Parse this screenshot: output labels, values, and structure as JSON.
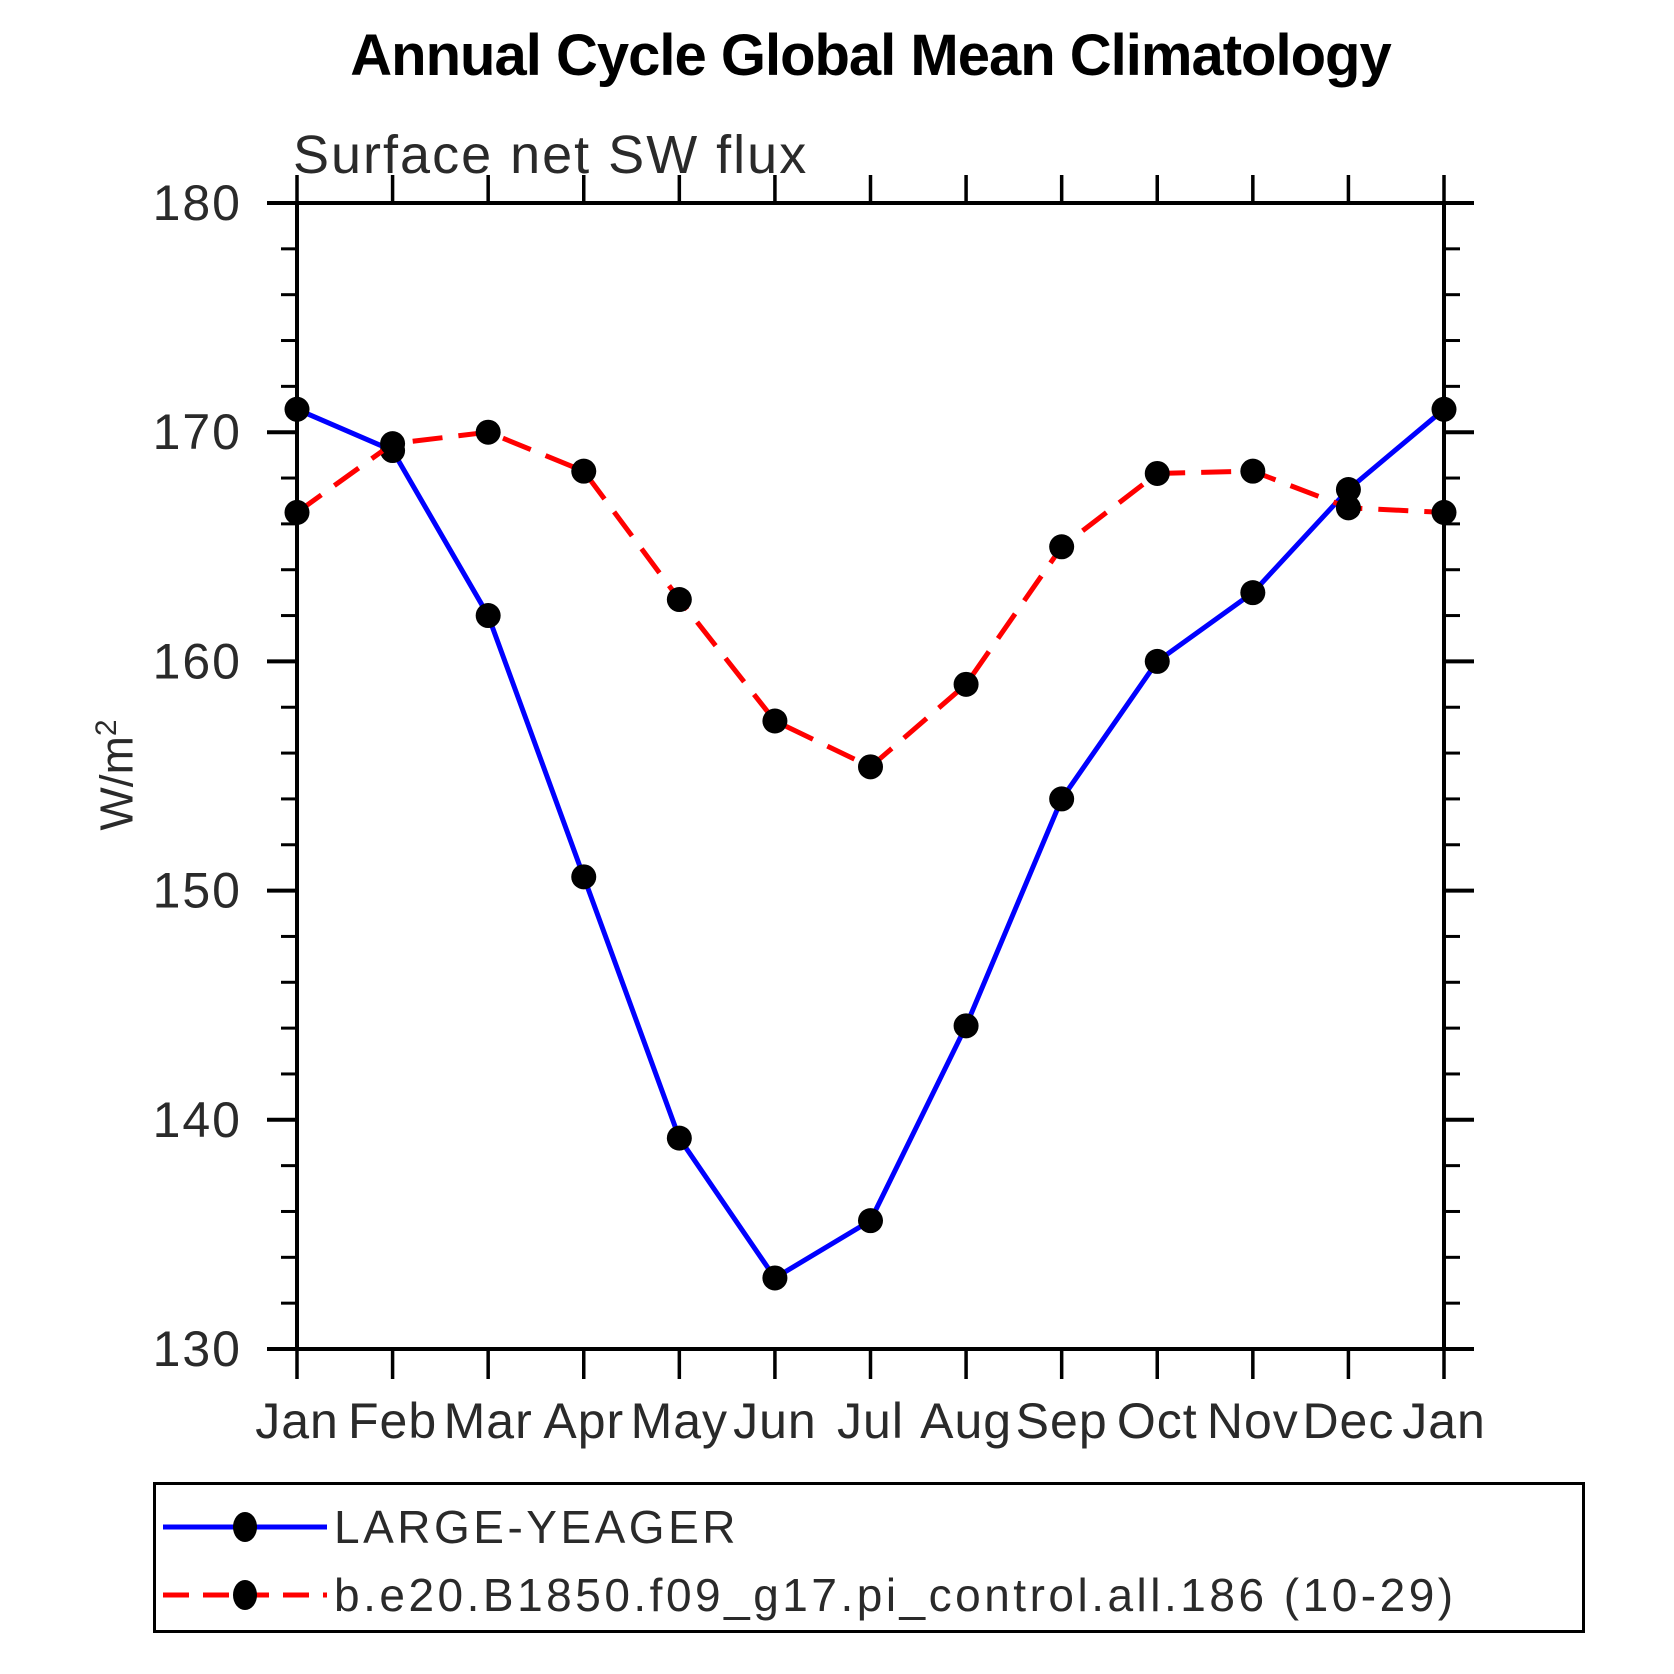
{
  "chart_data": {
    "type": "line",
    "title": "Annual Cycle Global Mean Climatology",
    "subtitle": "Surface net SW flux",
    "ylabel": "W/m²",
    "ylabel_base": "W/m",
    "ylabel_sup": "2",
    "x_categories": [
      "Jan",
      "Feb",
      "Mar",
      "Apr",
      "May",
      "Jun",
      "Jul",
      "Aug",
      "Sep",
      "Oct",
      "Nov",
      "Dec",
      "Jan"
    ],
    "ylim": [
      130,
      180
    ],
    "yticks": [
      130,
      140,
      150,
      160,
      170,
      180
    ],
    "y_minor_step": 2,
    "grid": false,
    "legend_position": "bottom-left-box",
    "axis_color": "#000000",
    "marker_color": "#000000",
    "series": [
      {
        "name": "LARGE-YEAGER",
        "color": "#0000ff",
        "line_style": "solid",
        "marker": "circle",
        "values": [
          171.0,
          169.2,
          162.0,
          150.6,
          139.2,
          133.1,
          135.6,
          144.1,
          154.0,
          160.0,
          163.0,
          167.5,
          171.0
        ]
      },
      {
        "name": "b.e20.B1850.f09_g17.pi_control.all.186 (10-29)",
        "color": "#ff0000",
        "line_style": "dashed",
        "marker": "circle",
        "values": [
          166.5,
          169.5,
          170.0,
          168.3,
          162.7,
          157.4,
          155.4,
          159.0,
          165.0,
          168.2,
          168.3,
          166.7,
          166.5
        ]
      }
    ]
  }
}
